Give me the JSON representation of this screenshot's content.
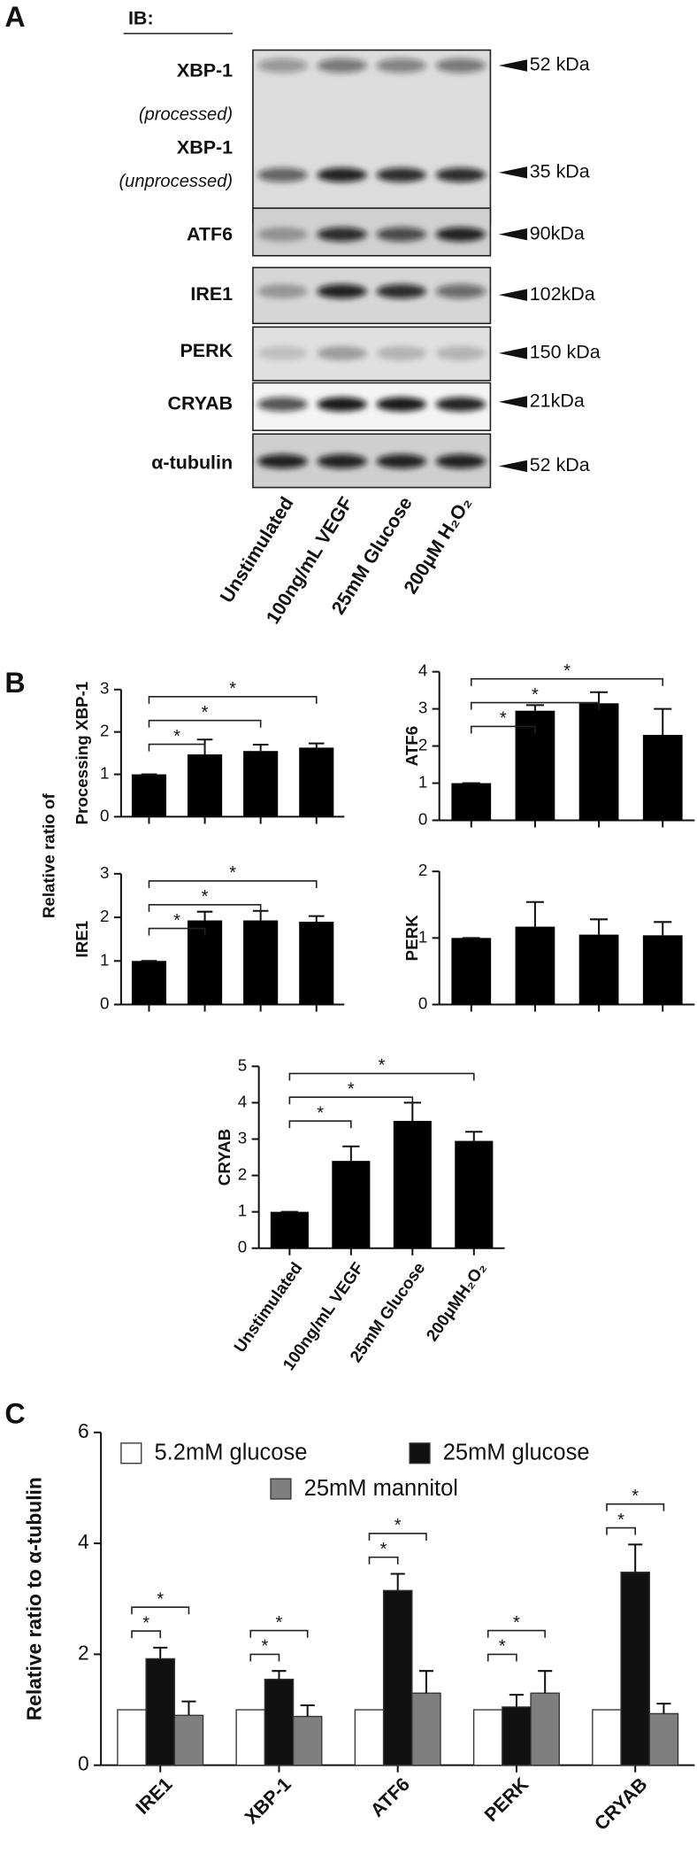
{
  "blot": {
    "label": "A",
    "ib": "IB:",
    "row_labels": [
      "XBP-1",
      "(processed)",
      "XBP-1",
      "(unprocessed)",
      "ATF6",
      "IRE1",
      "PERK",
      "CRYAB",
      "α-tubulin"
    ],
    "markers": [
      "52 kDa",
      "35 kDa",
      "90kDa",
      "102kDa",
      "150 kDa",
      "21kDa",
      "52 kDa"
    ],
    "lanes": [
      "Unstimulated",
      "100ng/mL VEGF",
      "25mM Glucose",
      "200μM H₂O₂"
    ]
  },
  "chart_data": [
    {
      "type": "bar",
      "panel": "B",
      "ylabel": "Processing XBP-1",
      "color": "#000000",
      "values": [
        1,
        1.47,
        1.55,
        1.63
      ],
      "errors": [
        0,
        0.35,
        0.15,
        0.1
      ],
      "significance": [
        null,
        "*",
        "*",
        "*"
      ],
      "ylim": [
        0,
        3
      ],
      "yticks": [
        0,
        1,
        2,
        3
      ]
    },
    {
      "type": "bar",
      "ylabel": "ATF6",
      "color": "#000000",
      "values": [
        1,
        2.95,
        3.15,
        2.3
      ],
      "errors": [
        0,
        0.15,
        0.3,
        0.7
      ],
      "significance": [
        null,
        "*",
        "*",
        "*"
      ],
      "ylim": [
        0,
        4
      ],
      "yticks": [
        0,
        1,
        2,
        3,
        4
      ]
    },
    {
      "type": "bar",
      "shared_ylabel": "Relative ratio of",
      "ylabel": "IRE1",
      "color": "#000000",
      "values": [
        1,
        1.93,
        1.93,
        1.9
      ],
      "errors": [
        0,
        0.2,
        0.22,
        0.13
      ],
      "significance": [
        null,
        "*",
        "*",
        "*"
      ],
      "ylim": [
        0,
        3
      ],
      "yticks": [
        0,
        1,
        2,
        3
      ]
    },
    {
      "type": "bar",
      "ylabel": "PERK",
      "color": "#000000",
      "values": [
        1,
        1.17,
        1.05,
        1.04
      ],
      "errors": [
        0,
        0.37,
        0.23,
        0.2
      ],
      "ylim": [
        0,
        2
      ],
      "yticks": [
        0,
        1,
        2
      ]
    },
    {
      "type": "bar",
      "ylabel": "CRYAB",
      "color": "#000000",
      "categories": [
        "Unstimulated",
        "100ng/mL VEGF",
        "25mM Glucose",
        "200μMH₂O₂"
      ],
      "values": [
        1,
        2.4,
        3.5,
        2.95
      ],
      "errors": [
        0,
        0.4,
        0.5,
        0.25
      ],
      "significance": [
        null,
        "*",
        "*",
        "*"
      ],
      "ylim": [
        0,
        5
      ],
      "yticks": [
        0,
        1,
        2,
        3,
        4,
        5
      ]
    },
    {
      "type": "grouped_bar",
      "panel": "C",
      "ylabel": "Relative ratio to α-tubulin",
      "legend": "top",
      "categories": [
        "IRE1",
        "XBP-1",
        "ATF6",
        "PERK",
        "CRYAB"
      ],
      "series": [
        {
          "name": "5.2mM glucose",
          "color": "#ffffff",
          "values": [
            1,
            1,
            1,
            1,
            1
          ]
        },
        {
          "name": "25mM glucose",
          "color": "#111111",
          "values": [
            1.92,
            1.55,
            3.15,
            1.05,
            3.48
          ],
          "errors": [
            0.2,
            0.15,
            0.3,
            0.22,
            0.5
          ],
          "significance": [
            "*",
            "*",
            "*",
            "*",
            "*"
          ]
        },
        {
          "name": "25mM mannitol",
          "color": "#7f7f7f",
          "values": [
            0.9,
            0.88,
            1.3,
            1.3,
            0.93
          ],
          "errors": [
            0.25,
            0.2,
            0.4,
            0.4,
            0.18
          ],
          "significance": [
            "*",
            "*",
            "*",
            "*",
            "*"
          ]
        }
      ],
      "ylim": [
        0,
        6
      ],
      "yticks": [
        0,
        2,
        4,
        6
      ]
    }
  ]
}
